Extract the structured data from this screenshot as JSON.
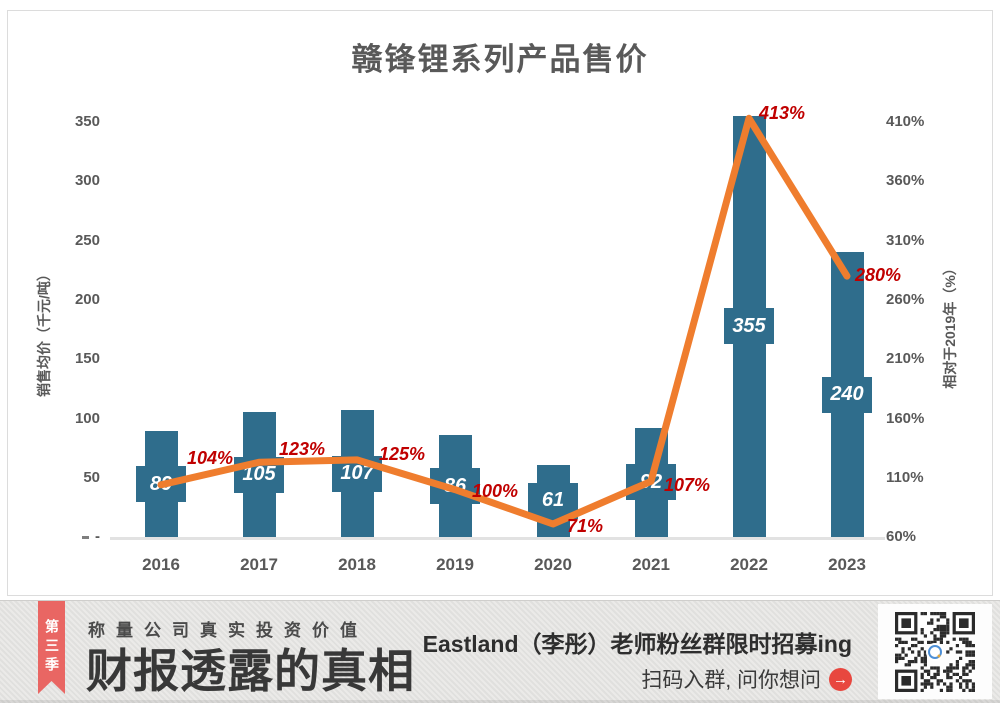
{
  "chart_data": {
    "type": "bar",
    "title": "赣锋锂系列产品售价",
    "categories": [
      "2016",
      "2017",
      "2018",
      "2019",
      "2020",
      "2021",
      "2022",
      "2023"
    ],
    "series": [
      {
        "name": "销售均价（千元/吨）",
        "type": "bar",
        "axis": "left",
        "color": "#2f6d8c",
        "values": [
          89,
          105,
          107,
          86,
          61,
          92,
          355,
          240
        ],
        "data_labels": [
          "89",
          "105",
          "107",
          "86",
          "61",
          "92",
          "355",
          "240"
        ],
        "data_label_style": "white italic, boxed inside bar"
      },
      {
        "name": "相对于2019年（%）",
        "type": "line",
        "axis": "right",
        "color": "#ef7d2e",
        "values": [
          104,
          123,
          125,
          100,
          71,
          107,
          413,
          280
        ],
        "data_labels": [
          "104%",
          "123%",
          "125%",
          "100%",
          "71%",
          "107%",
          "413%",
          "280%"
        ],
        "data_label_color": "#c00000"
      }
    ],
    "left_axis": {
      "label": "销售均价（千元/吨）",
      "ticks": [
        "350",
        "300",
        "250",
        "200",
        "150",
        "100",
        "50",
        "-"
      ],
      "min": 0,
      "tick_step": 50
    },
    "right_axis": {
      "label": "相对于2019年（%）",
      "ticks": [
        "410%",
        "360%",
        "310%",
        "260%",
        "210%",
        "160%",
        "110%",
        "60%"
      ],
      "min": 60,
      "tick_step": 50
    },
    "legend": "none",
    "grid": false
  },
  "banner": {
    "ribbon": "第三季",
    "tagline": "称量公司真实投资价值",
    "headline": "财报透露的真相",
    "cta_line1": "Eastland（李彤）老师粉丝群限时招募ing",
    "cta_line2": "扫码入群, 问你想问",
    "arrow_icon": "→",
    "qr_icon": "qr-code",
    "colors": {
      "ribbon": "#e96663",
      "arrow_bg": "#e8473f",
      "background": "#e4e3e1",
      "bar": "#2f6d8c",
      "line": "#ef7d2e",
      "pct_label": "#c00000"
    }
  }
}
